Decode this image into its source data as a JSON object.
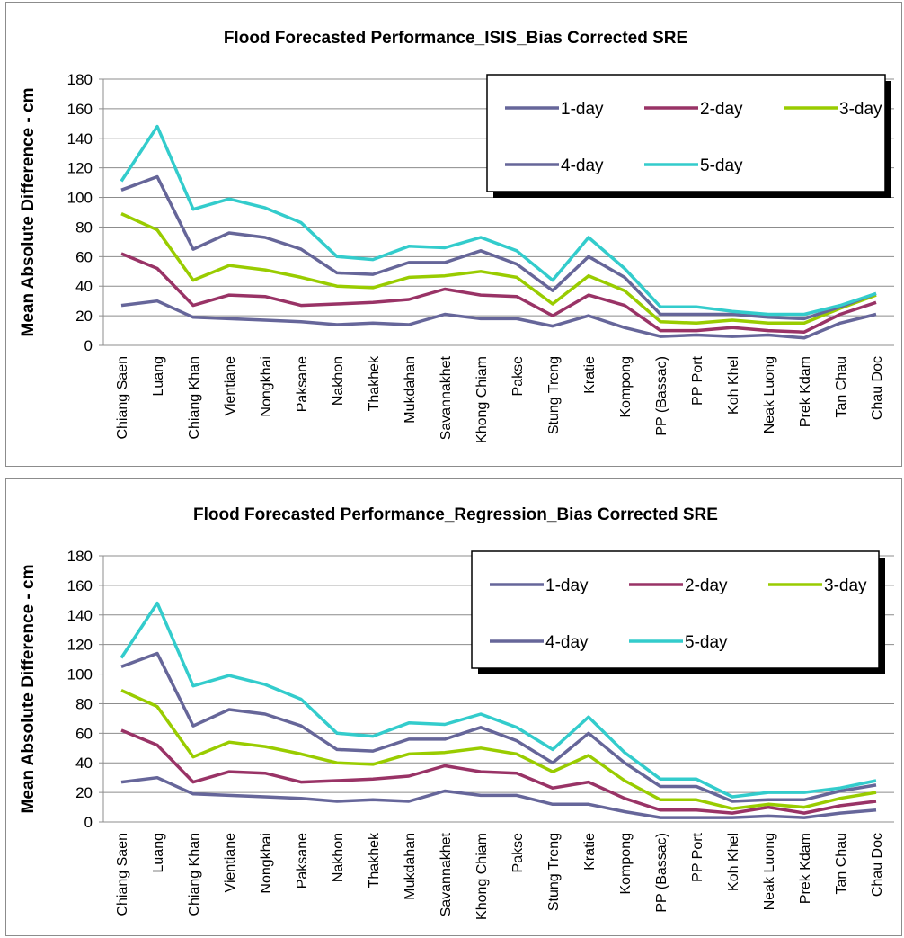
{
  "chart_data": [
    {
      "type": "line",
      "title": "Flood Forecasted Performance_ISIS_Bias Corrected SRE",
      "xlabel": "",
      "ylabel": "Mean Absolute Difference - cm",
      "ylim": [
        0,
        180
      ],
      "yticks": [
        0,
        20,
        40,
        60,
        80,
        100,
        120,
        140,
        160,
        180
      ],
      "grid": true,
      "legend_position": "top-right",
      "categories": [
        "Chiang Saen",
        "Luang",
        "Chiang Khan",
        "Vientiane",
        "Nongkhai",
        "Paksane",
        "Nakhon",
        "Thakhek",
        "Mukdahan",
        "Savannakhet",
        "Khong Chiam",
        "Pakse",
        "Stung Treng",
        "Kratie",
        "Kompong",
        "PP (Bassac)",
        "PP Port",
        "Koh Khel",
        "Neak Luong",
        "Prek Kdam",
        "Tan Chau",
        "Chau Doc"
      ],
      "series": [
        {
          "name": "1-day",
          "color": "#66669a",
          "values": [
            27,
            30,
            19,
            18,
            17,
            16,
            14,
            15,
            14,
            21,
            18,
            18,
            13,
            20,
            12,
            6,
            7,
            6,
            7,
            5,
            15,
            21
          ]
        },
        {
          "name": "2-day",
          "color": "#993366",
          "values": [
            62,
            52,
            27,
            34,
            33,
            27,
            28,
            29,
            31,
            38,
            34,
            33,
            20,
            34,
            27,
            10,
            10,
            12,
            10,
            9,
            21,
            29
          ]
        },
        {
          "name": "3-day",
          "color": "#99cc00",
          "values": [
            89,
            78,
            44,
            54,
            51,
            46,
            40,
            39,
            46,
            47,
            50,
            46,
            28,
            47,
            37,
            16,
            15,
            17,
            15,
            15,
            25,
            34
          ]
        },
        {
          "name": "4-day",
          "color": "#666699",
          "values": [
            105,
            114,
            65,
            76,
            73,
            65,
            49,
            48,
            56,
            56,
            64,
            55,
            37,
            60,
            46,
            21,
            21,
            21,
            19,
            18,
            26,
            35
          ]
        },
        {
          "name": "5-day",
          "color": "#33cccc",
          "values": [
            111,
            148,
            92,
            99,
            93,
            83,
            60,
            58,
            67,
            66,
            73,
            64,
            44,
            73,
            52,
            26,
            26,
            23,
            21,
            21,
            27,
            35
          ]
        }
      ]
    },
    {
      "type": "line",
      "title": "Flood Forecasted Performance_Regression_Bias Corrected SRE",
      "xlabel": "",
      "ylabel": "Mean Absolute Difference - cm",
      "ylim": [
        0,
        180
      ],
      "yticks": [
        0,
        20,
        40,
        60,
        80,
        100,
        120,
        140,
        160,
        180
      ],
      "grid": true,
      "legend_position": "top-right",
      "categories": [
        "Chiang Saen",
        "Luang",
        "Chiang Khan",
        "Vientiane",
        "Nongkhai",
        "Paksane",
        "Nakhon",
        "Thakhek",
        "Mukdahan",
        "Savannakhet",
        "Khong Chiam",
        "Pakse",
        "Stung Treng",
        "Kratie",
        "Kompong",
        "PP (Bassac)",
        "PP Port",
        "Koh Khel",
        "Neak Luong",
        "Prek Kdam",
        "Tan Chau",
        "Chau Doc"
      ],
      "series": [
        {
          "name": "1-day",
          "color": "#66669a",
          "values": [
            27,
            30,
            19,
            18,
            17,
            16,
            14,
            15,
            14,
            21,
            18,
            18,
            12,
            12,
            7,
            3,
            3,
            3,
            4,
            3,
            6,
            8
          ]
        },
        {
          "name": "2-day",
          "color": "#993366",
          "values": [
            62,
            52,
            27,
            34,
            33,
            27,
            28,
            29,
            31,
            38,
            34,
            33,
            23,
            27,
            16,
            8,
            8,
            6,
            10,
            6,
            11,
            14
          ]
        },
        {
          "name": "3-day",
          "color": "#99cc00",
          "values": [
            89,
            78,
            44,
            54,
            51,
            46,
            40,
            39,
            46,
            47,
            50,
            46,
            34,
            45,
            28,
            15,
            15,
            9,
            12,
            10,
            16,
            20
          ]
        },
        {
          "name": "4-day",
          "color": "#666699",
          "values": [
            105,
            114,
            65,
            76,
            73,
            65,
            49,
            48,
            56,
            56,
            64,
            55,
            40,
            60,
            40,
            24,
            24,
            14,
            15,
            15,
            21,
            25
          ]
        },
        {
          "name": "5-day",
          "color": "#33cccc",
          "values": [
            111,
            148,
            92,
            99,
            93,
            83,
            60,
            58,
            67,
            66,
            73,
            64,
            49,
            71,
            47,
            29,
            29,
            17,
            20,
            20,
            23,
            28
          ]
        }
      ]
    }
  ]
}
